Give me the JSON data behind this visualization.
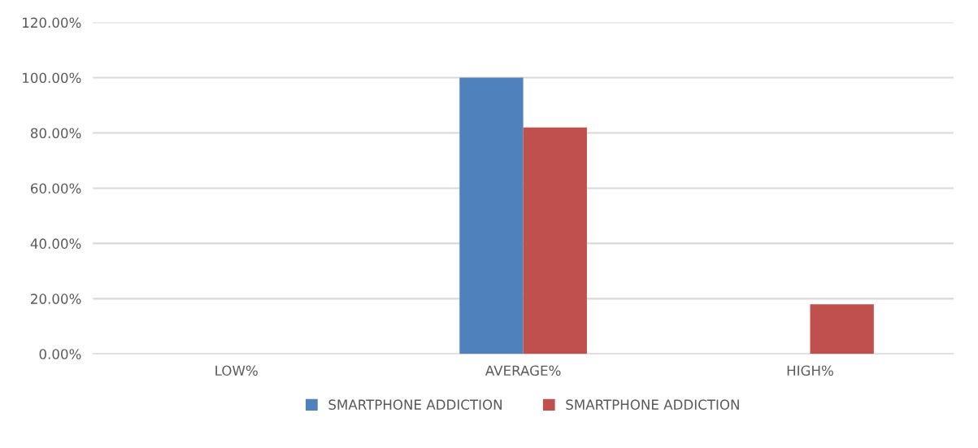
{
  "chart_data": {
    "type": "bar",
    "categories": [
      "LOW%",
      "AVERAGE%",
      "HIGH%"
    ],
    "series": [
      {
        "name": "SMARTPHONE ADDICTION",
        "color": "#4f81bd",
        "values": [
          0,
          100,
          0
        ]
      },
      {
        "name": "SMARTPHONE ADDICTION",
        "color": "#c0504d",
        "values": [
          0,
          82,
          18
        ]
      }
    ],
    "ylim": [
      0,
      120
    ],
    "yticks": [
      {
        "value": 0,
        "label": "0.00%"
      },
      {
        "value": 20,
        "label": "20.00%"
      },
      {
        "value": 40,
        "label": "40.00%"
      },
      {
        "value": 60,
        "label": "60.00%"
      },
      {
        "value": 80,
        "label": "80.00%"
      },
      {
        "value": 100,
        "label": "100.00%"
      },
      {
        "value": 120,
        "label": "120.00%"
      }
    ],
    "grid": "y",
    "legend": "bottom"
  }
}
